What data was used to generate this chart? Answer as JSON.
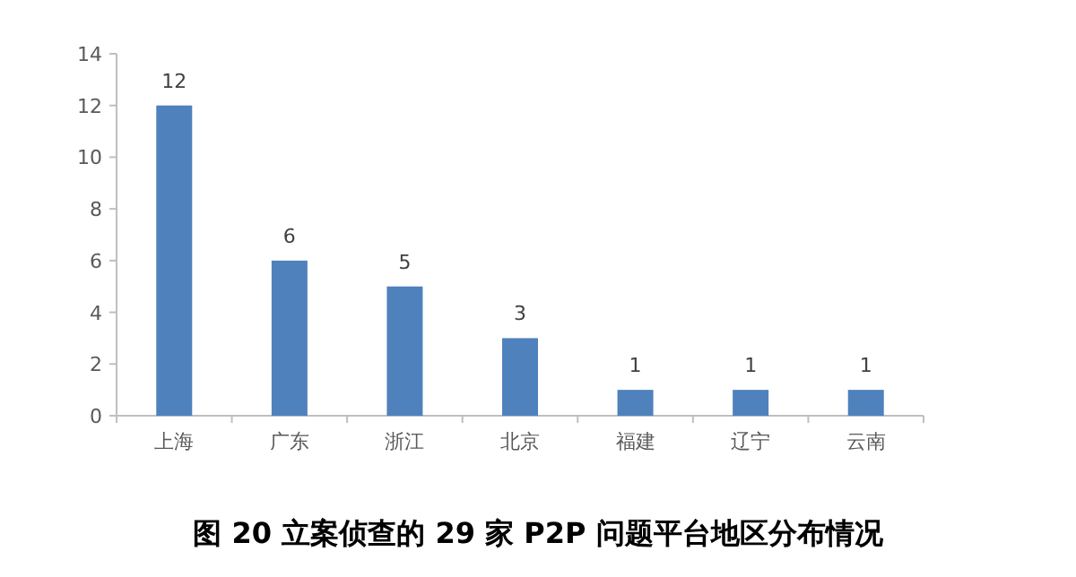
{
  "chart_data": {
    "type": "bar",
    "title": "图 20  立案侦查的 29 家 P2P 问题平台地区分布情况",
    "categories": [
      "上海",
      "广东",
      "浙江",
      "北京",
      "福建",
      "辽宁",
      "云南"
    ],
    "values": [
      12,
      6,
      5,
      3,
      1,
      1,
      1
    ],
    "color": "#4f81bd",
    "ylim": [
      0,
      14
    ],
    "yticks": [
      0,
      2,
      4,
      6,
      8,
      10,
      12,
      14
    ],
    "data_labels": true
  }
}
